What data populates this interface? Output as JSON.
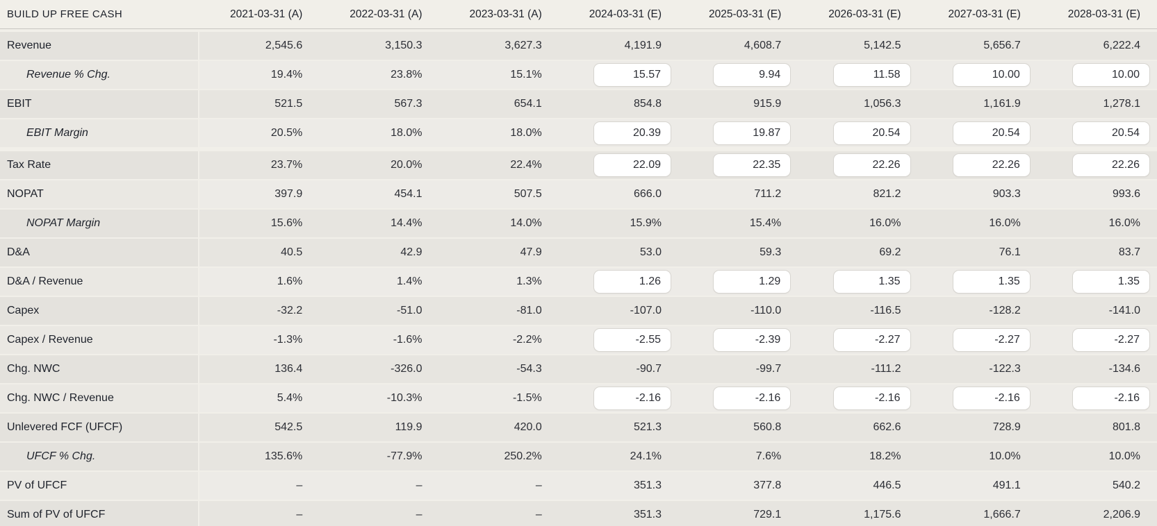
{
  "colors": {
    "page_bg": "#f1efe9",
    "row_dark": "#e7e5e0",
    "row_light": "#edebe7",
    "text": "#2d2f36",
    "header_text": "#1e222b",
    "input_bg": "#ffffff",
    "input_border": "#d7d5d0",
    "header_border": "#c7c5c0"
  },
  "table": {
    "title": "BUILD UP FREE CASH",
    "columns": [
      "2021-03-31 (A)",
      "2022-03-31 (A)",
      "2023-03-31 (A)",
      "2024-03-31 (E)",
      "2025-03-31 (E)",
      "2026-03-31 (E)",
      "2027-03-31 (E)",
      "2028-03-31 (E)"
    ],
    "rows": [
      {
        "label": "Revenue",
        "italic": false,
        "group_start": false,
        "shade": "a",
        "cells": [
          {
            "type": "text",
            "value": "2,545.6"
          },
          {
            "type": "text",
            "value": "3,150.3"
          },
          {
            "type": "text",
            "value": "3,627.3"
          },
          {
            "type": "text",
            "value": "4,191.9"
          },
          {
            "type": "text",
            "value": "4,608.7"
          },
          {
            "type": "text",
            "value": "5,142.5"
          },
          {
            "type": "text",
            "value": "5,656.7"
          },
          {
            "type": "text",
            "value": "6,222.4"
          }
        ]
      },
      {
        "label": "Revenue % Chg.",
        "italic": true,
        "group_start": false,
        "shade": "b",
        "cells": [
          {
            "type": "text",
            "value": "19.4%"
          },
          {
            "type": "text",
            "value": "23.8%"
          },
          {
            "type": "text",
            "value": "15.1%"
          },
          {
            "type": "input",
            "value": "15.57"
          },
          {
            "type": "input",
            "value": "9.94"
          },
          {
            "type": "input",
            "value": "11.58"
          },
          {
            "type": "input",
            "value": "10.00"
          },
          {
            "type": "input",
            "value": "10.00"
          }
        ]
      },
      {
        "label": "EBIT",
        "italic": false,
        "group_start": false,
        "shade": "a",
        "cells": [
          {
            "type": "text",
            "value": "521.5"
          },
          {
            "type": "text",
            "value": "567.3"
          },
          {
            "type": "text",
            "value": "654.1"
          },
          {
            "type": "text",
            "value": "854.8"
          },
          {
            "type": "text",
            "value": "915.9"
          },
          {
            "type": "text",
            "value": "1,056.3"
          },
          {
            "type": "text",
            "value": "1,161.9"
          },
          {
            "type": "text",
            "value": "1,278.1"
          }
        ]
      },
      {
        "label": "EBIT Margin",
        "italic": true,
        "group_start": false,
        "shade": "b",
        "cells": [
          {
            "type": "text",
            "value": "20.5%"
          },
          {
            "type": "text",
            "value": "18.0%"
          },
          {
            "type": "text",
            "value": "18.0%"
          },
          {
            "type": "input",
            "value": "20.39"
          },
          {
            "type": "input",
            "value": "19.87"
          },
          {
            "type": "input",
            "value": "20.54"
          },
          {
            "type": "input",
            "value": "20.54"
          },
          {
            "type": "input",
            "value": "20.54"
          }
        ]
      },
      {
        "label": "Tax Rate",
        "italic": false,
        "group_start": true,
        "shade": "a",
        "cells": [
          {
            "type": "text",
            "value": "23.7%"
          },
          {
            "type": "text",
            "value": "20.0%"
          },
          {
            "type": "text",
            "value": "22.4%"
          },
          {
            "type": "input",
            "value": "22.09"
          },
          {
            "type": "input",
            "value": "22.35"
          },
          {
            "type": "input",
            "value": "22.26"
          },
          {
            "type": "input",
            "value": "22.26"
          },
          {
            "type": "input",
            "value": "22.26"
          }
        ]
      },
      {
        "label": "NOPAT",
        "italic": false,
        "group_start": false,
        "shade": "b",
        "cells": [
          {
            "type": "text",
            "value": "397.9"
          },
          {
            "type": "text",
            "value": "454.1"
          },
          {
            "type": "text",
            "value": "507.5"
          },
          {
            "type": "text",
            "value": "666.0"
          },
          {
            "type": "text",
            "value": "711.2"
          },
          {
            "type": "text",
            "value": "821.2"
          },
          {
            "type": "text",
            "value": "903.3"
          },
          {
            "type": "text",
            "value": "993.6"
          }
        ]
      },
      {
        "label": "NOPAT Margin",
        "italic": true,
        "group_start": false,
        "shade": "a",
        "cells": [
          {
            "type": "text",
            "value": "15.6%"
          },
          {
            "type": "text",
            "value": "14.4%"
          },
          {
            "type": "text",
            "value": "14.0%"
          },
          {
            "type": "text",
            "value": "15.9%"
          },
          {
            "type": "text",
            "value": "15.4%"
          },
          {
            "type": "text",
            "value": "16.0%"
          },
          {
            "type": "text",
            "value": "16.0%"
          },
          {
            "type": "text",
            "value": "16.0%"
          }
        ]
      },
      {
        "label": "D&A",
        "italic": false,
        "group_start": false,
        "shade": "a",
        "cells": [
          {
            "type": "text",
            "value": "40.5"
          },
          {
            "type": "text",
            "value": "42.9"
          },
          {
            "type": "text",
            "value": "47.9"
          },
          {
            "type": "text",
            "value": "53.0"
          },
          {
            "type": "text",
            "value": "59.3"
          },
          {
            "type": "text",
            "value": "69.2"
          },
          {
            "type": "text",
            "value": "76.1"
          },
          {
            "type": "text",
            "value": "83.7"
          }
        ]
      },
      {
        "label": "D&A / Revenue",
        "italic": false,
        "group_start": false,
        "shade": "b",
        "cells": [
          {
            "type": "text",
            "value": "1.6%"
          },
          {
            "type": "text",
            "value": "1.4%"
          },
          {
            "type": "text",
            "value": "1.3%"
          },
          {
            "type": "input",
            "value": "1.26"
          },
          {
            "type": "input",
            "value": "1.29"
          },
          {
            "type": "input",
            "value": "1.35"
          },
          {
            "type": "input",
            "value": "1.35"
          },
          {
            "type": "input",
            "value": "1.35"
          }
        ]
      },
      {
        "label": "Capex",
        "italic": false,
        "group_start": false,
        "shade": "a",
        "cells": [
          {
            "type": "text",
            "value": "-32.2"
          },
          {
            "type": "text",
            "value": "-51.0"
          },
          {
            "type": "text",
            "value": "-81.0"
          },
          {
            "type": "text",
            "value": "-107.0"
          },
          {
            "type": "text",
            "value": "-110.0"
          },
          {
            "type": "text",
            "value": "-116.5"
          },
          {
            "type": "text",
            "value": "-128.2"
          },
          {
            "type": "text",
            "value": "-141.0"
          }
        ]
      },
      {
        "label": "Capex / Revenue",
        "italic": false,
        "group_start": false,
        "shade": "b",
        "cells": [
          {
            "type": "text",
            "value": "-1.3%"
          },
          {
            "type": "text",
            "value": "-1.6%"
          },
          {
            "type": "text",
            "value": "-2.2%"
          },
          {
            "type": "input",
            "value": "-2.55"
          },
          {
            "type": "input",
            "value": "-2.39"
          },
          {
            "type": "input",
            "value": "-2.27"
          },
          {
            "type": "input",
            "value": "-2.27"
          },
          {
            "type": "input",
            "value": "-2.27"
          }
        ]
      },
      {
        "label": "Chg. NWC",
        "italic": false,
        "group_start": false,
        "shade": "a",
        "cells": [
          {
            "type": "text",
            "value": "136.4"
          },
          {
            "type": "text",
            "value": "-326.0"
          },
          {
            "type": "text",
            "value": "-54.3"
          },
          {
            "type": "text",
            "value": "-90.7"
          },
          {
            "type": "text",
            "value": "-99.7"
          },
          {
            "type": "text",
            "value": "-111.2"
          },
          {
            "type": "text",
            "value": "-122.3"
          },
          {
            "type": "text",
            "value": "-134.6"
          }
        ]
      },
      {
        "label": "Chg. NWC / Revenue",
        "italic": false,
        "group_start": false,
        "shade": "b",
        "cells": [
          {
            "type": "text",
            "value": "5.4%"
          },
          {
            "type": "text",
            "value": "-10.3%"
          },
          {
            "type": "text",
            "value": "-1.5%"
          },
          {
            "type": "input",
            "value": "-2.16"
          },
          {
            "type": "input",
            "value": "-2.16"
          },
          {
            "type": "input",
            "value": "-2.16"
          },
          {
            "type": "input",
            "value": "-2.16"
          },
          {
            "type": "input",
            "value": "-2.16"
          }
        ]
      },
      {
        "label": "Unlevered FCF (UFCF)",
        "italic": false,
        "group_start": false,
        "shade": "a",
        "cells": [
          {
            "type": "text",
            "value": "542.5"
          },
          {
            "type": "text",
            "value": "119.9"
          },
          {
            "type": "text",
            "value": "420.0"
          },
          {
            "type": "text",
            "value": "521.3"
          },
          {
            "type": "text",
            "value": "560.8"
          },
          {
            "type": "text",
            "value": "662.6"
          },
          {
            "type": "text",
            "value": "728.9"
          },
          {
            "type": "text",
            "value": "801.8"
          }
        ]
      },
      {
        "label": "UFCF % Chg.",
        "italic": true,
        "group_start": false,
        "shade": "a",
        "cells": [
          {
            "type": "text",
            "value": "135.6%"
          },
          {
            "type": "text",
            "value": "-77.9%"
          },
          {
            "type": "text",
            "value": "250.2%"
          },
          {
            "type": "text",
            "value": "24.1%"
          },
          {
            "type": "text",
            "value": "7.6%"
          },
          {
            "type": "text",
            "value": "18.2%"
          },
          {
            "type": "text",
            "value": "10.0%"
          },
          {
            "type": "text",
            "value": "10.0%"
          }
        ]
      },
      {
        "label": "PV of UFCF",
        "italic": false,
        "group_start": false,
        "shade": "b",
        "cells": [
          {
            "type": "text",
            "value": "–"
          },
          {
            "type": "text",
            "value": "–"
          },
          {
            "type": "text",
            "value": "–"
          },
          {
            "type": "text",
            "value": "351.3"
          },
          {
            "type": "text",
            "value": "377.8"
          },
          {
            "type": "text",
            "value": "446.5"
          },
          {
            "type": "text",
            "value": "491.1"
          },
          {
            "type": "text",
            "value": "540.2"
          }
        ]
      },
      {
        "label": "Sum of PV of UFCF",
        "italic": false,
        "group_start": false,
        "shade": "a",
        "cells": [
          {
            "type": "text",
            "value": "–"
          },
          {
            "type": "text",
            "value": "–"
          },
          {
            "type": "text",
            "value": "–"
          },
          {
            "type": "text",
            "value": "351.3"
          },
          {
            "type": "text",
            "value": "729.1"
          },
          {
            "type": "text",
            "value": "1,175.6"
          },
          {
            "type": "text",
            "value": "1,666.7"
          },
          {
            "type": "text",
            "value": "2,206.9"
          }
        ]
      }
    ]
  }
}
